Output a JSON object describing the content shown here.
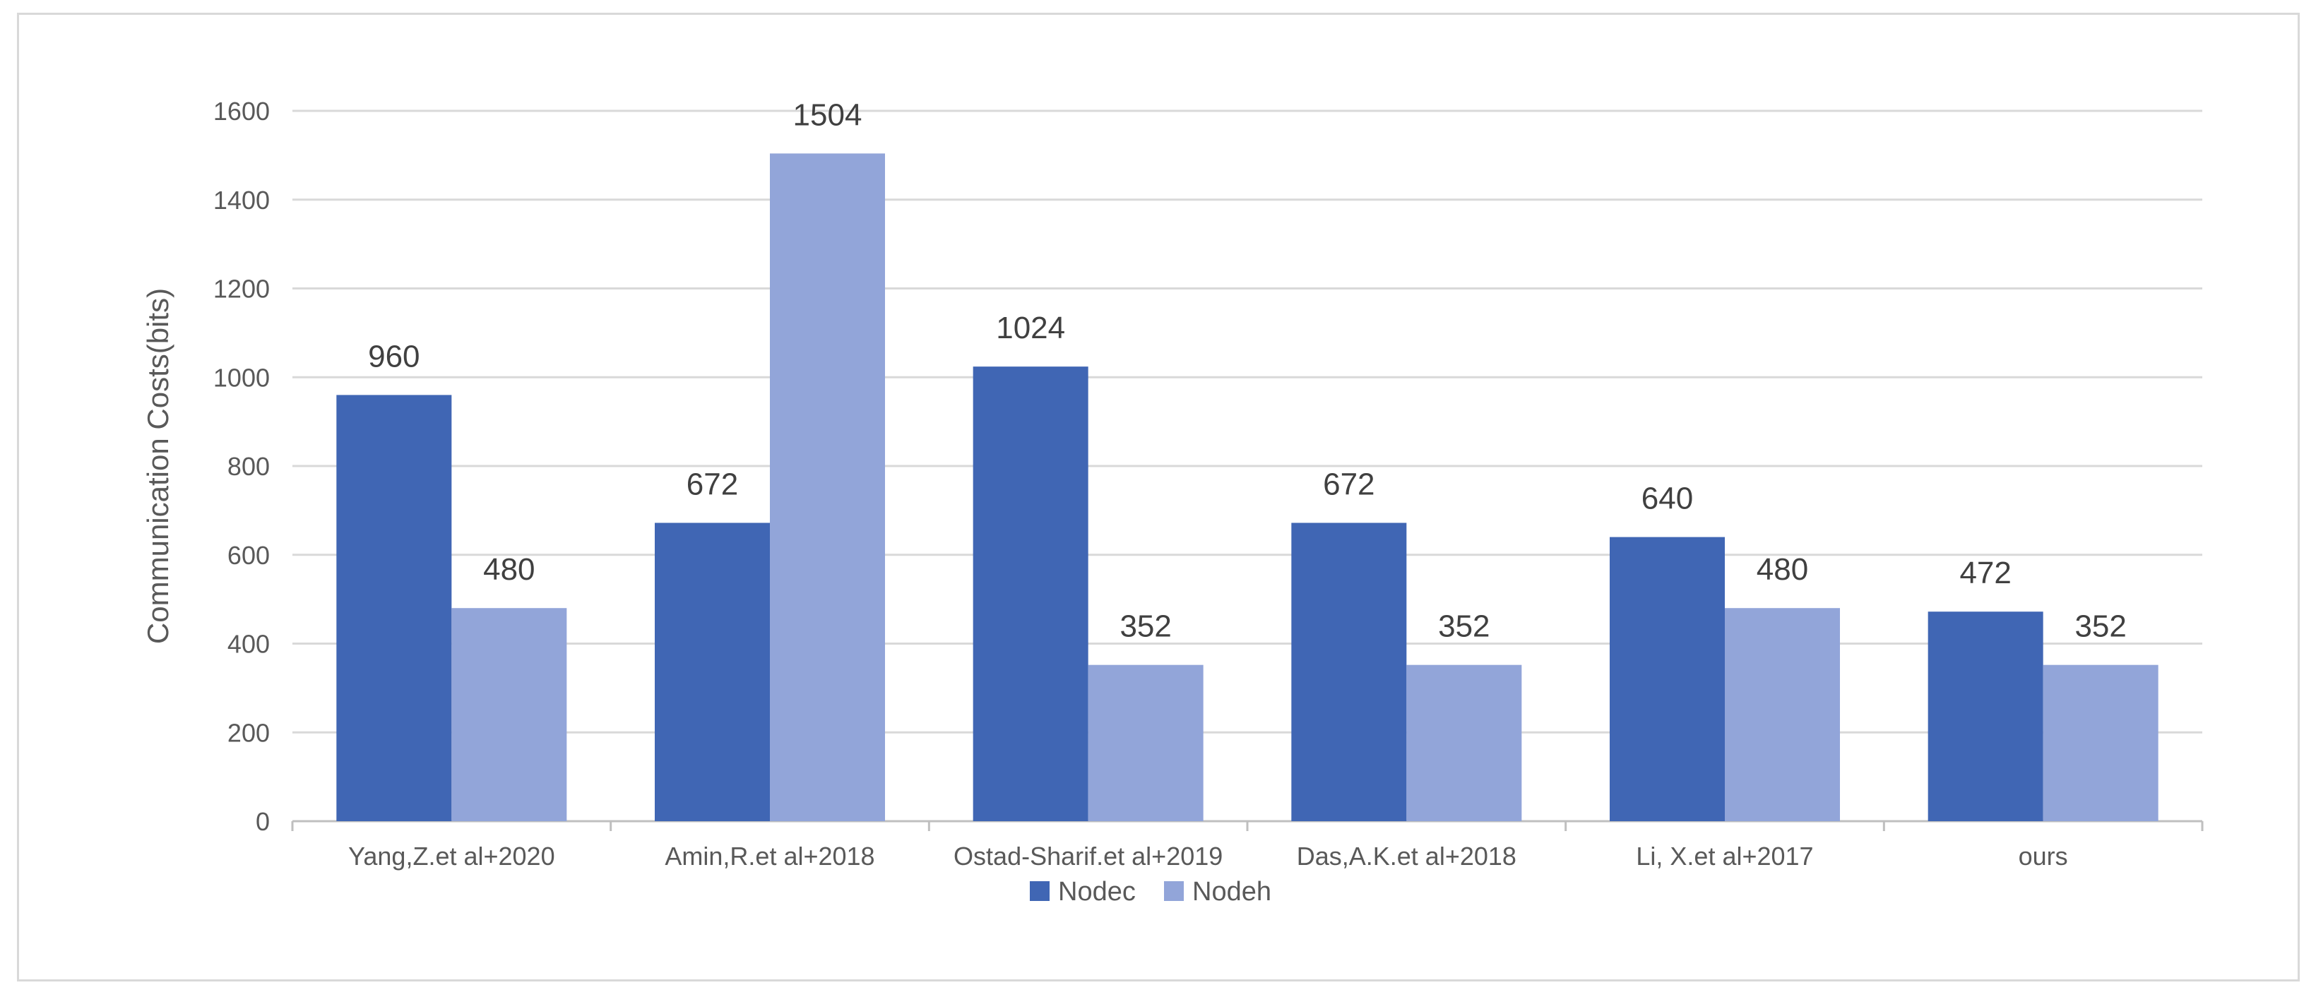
{
  "chart_data": {
    "type": "bar",
    "title": "",
    "xlabel": "",
    "ylabel": "Communication Costs(bits)",
    "ylim": [
      0,
      1600
    ],
    "yticks": [
      0,
      200,
      400,
      600,
      800,
      1000,
      1200,
      1400,
      1600
    ],
    "grid": true,
    "legend_position": "bottom",
    "categories": [
      "Yang,Z.et al+2020",
      "Amin,R.et al+2018",
      "Ostad-Sharif.et al+2019",
      "Das,A.K.et al+2018",
      "Li, X.et al+2017",
      "ours"
    ],
    "series": [
      {
        "name": "Nodec",
        "color": "#4066b4",
        "values": [
          960,
          672,
          1024,
          672,
          640,
          472
        ]
      },
      {
        "name": "Nodeh",
        "color": "#92a5d9",
        "values": [
          480,
          1504,
          352,
          352,
          480,
          352
        ]
      }
    ]
  }
}
